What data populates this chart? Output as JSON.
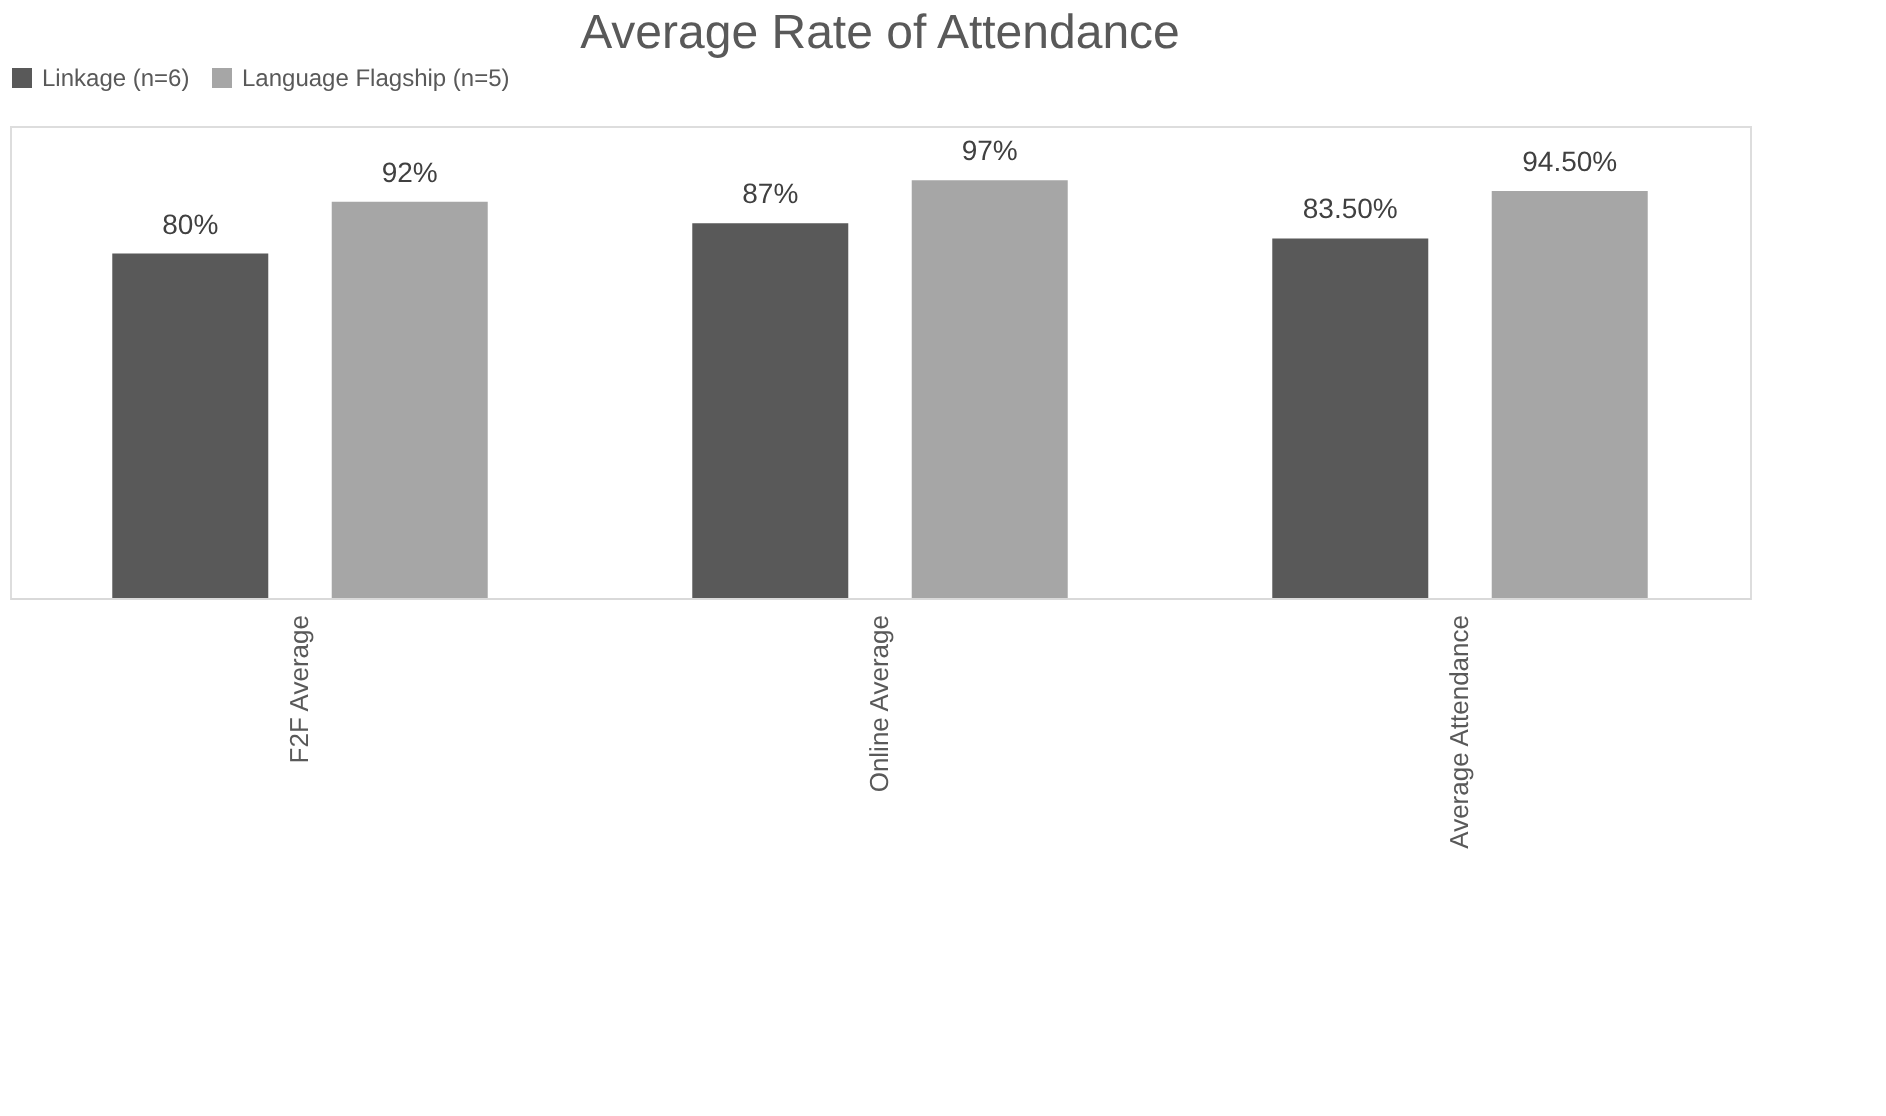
{
  "chart_data": {
    "type": "bar",
    "title": "Average Rate of Attendance",
    "categories": [
      "F2F Average",
      "Online Average",
      "Average Attendance"
    ],
    "series": [
      {
        "name": "Linkage (n=6)",
        "color": "#595959",
        "values": [
          80,
          87,
          83.5
        ],
        "value_labels": [
          "80%",
          "87%",
          "83.50%"
        ]
      },
      {
        "name": "Language Flagship (n=5)",
        "color": "#a6a6a6",
        "values": [
          92,
          97,
          94.5
        ],
        "value_labels": [
          "92%",
          "97%",
          "94.50%"
        ]
      }
    ],
    "legend": "top",
    "grid": false,
    "tick_labels": "x"
  }
}
